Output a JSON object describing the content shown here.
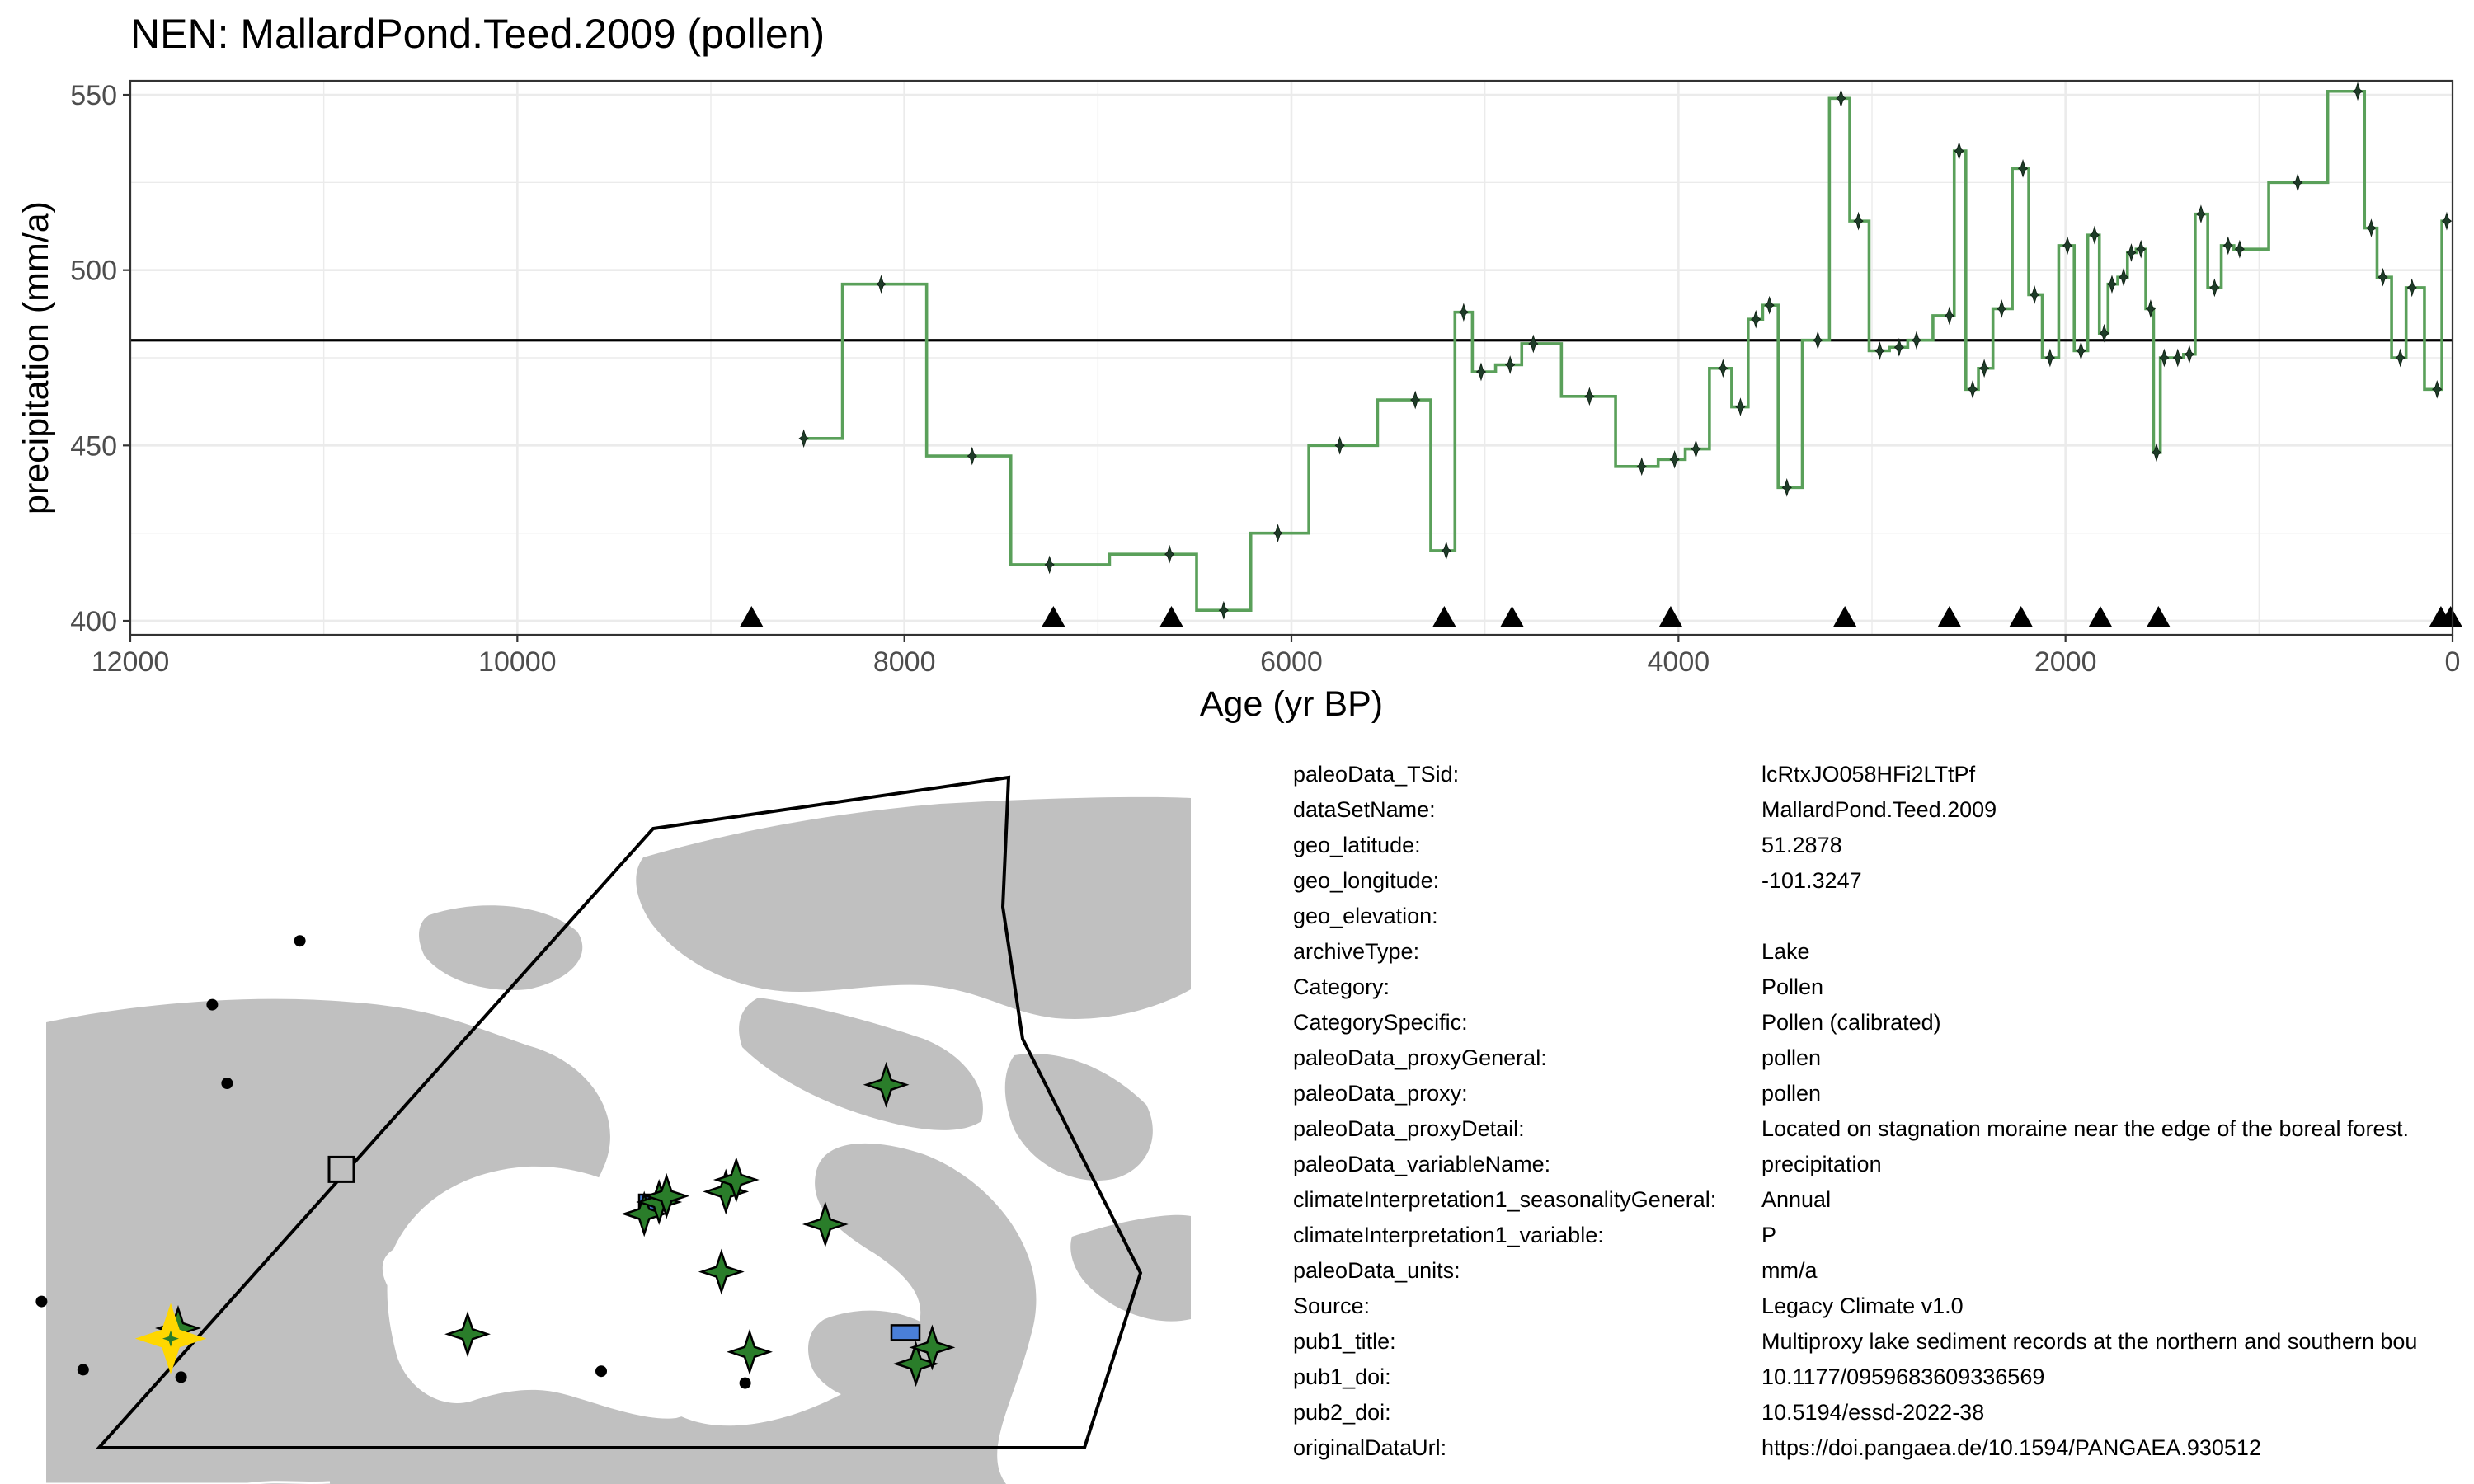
{
  "chart_data": {
    "type": "line",
    "title": "NEN: MallardPond.Teed.2009 (pollen)",
    "xlabel": "Age (yr BP)",
    "ylabel": "precipitation (mm/a)",
    "xlim": [
      12000,
      0
    ],
    "ylim": [
      396,
      554
    ],
    "x_reversed": true,
    "grid": true,
    "x_ticks": [
      "12000",
      "10000",
      "8000",
      "6000",
      "4000",
      "2000",
      "0"
    ],
    "y_ticks": [
      "400",
      "450",
      "500",
      "550"
    ],
    "line_style": "step",
    "series": [
      {
        "x": [
          8520,
          8120,
          7650,
          7250,
          6630,
          6350,
          6070,
          5750,
          5360,
          5200,
          5110,
          5020,
          4870,
          4750,
          4460,
          4190,
          4020,
          3910,
          3770,
          3680,
          3600,
          3530,
          3440,
          3280,
          3160,
          3070,
          2960,
          2860,
          2770,
          2600,
          2550,
          2480,
          2420,
          2330,
          2220,
          2160,
          2080,
          1990,
          1920,
          1850,
          1800,
          1760,
          1700,
          1660,
          1610,
          1560,
          1530,
          1490,
          1420,
          1360,
          1300,
          1230,
          1160,
          1100,
          800,
          490,
          420,
          360,
          270,
          210,
          80,
          30
        ],
        "y": [
          452,
          496,
          447,
          416,
          419,
          403,
          425,
          450,
          463,
          420,
          488,
          471,
          473,
          479,
          464,
          444,
          446,
          449,
          472,
          461,
          486,
          490,
          438,
          480,
          549,
          514,
          477,
          478,
          480,
          487,
          534,
          466,
          472,
          489,
          529,
          493,
          475,
          507,
          477,
          510,
          482,
          496,
          498,
          505,
          506,
          489,
          448,
          475,
          475,
          476,
          516,
          495,
          507,
          506,
          525,
          551,
          512,
          498,
          475,
          495,
          466,
          514
        ]
      }
    ],
    "reference_line": 480,
    "markers_at_base_x": [
      8790,
      7230,
      6620,
      5210,
      4860,
      4040,
      3140,
      2600,
      2230,
      1820,
      1520,
      60,
      10
    ]
  },
  "map": {
    "sites": {
      "target_star": [
        115,
        902
      ],
      "green_stars": [
        [
          597,
          731
        ],
        [
          434,
          818
        ],
        [
          444,
          810
        ],
        [
          449,
          806
        ],
        [
          489,
          803
        ],
        [
          496,
          795
        ],
        [
          556,
          825
        ],
        [
          486,
          857
        ],
        [
          315,
          899
        ],
        [
          505,
          911
        ],
        [
          617,
          919
        ],
        [
          628,
          908
        ],
        [
          120,
          895
        ]
      ],
      "black_dots": [
        [
          202,
          634
        ],
        [
          143,
          677
        ],
        [
          153,
          730
        ],
        [
          28,
          877
        ],
        [
          56,
          923
        ],
        [
          122,
          928
        ],
        [
          405,
          924
        ],
        [
          502,
          932
        ]
      ],
      "hollow_squares": [
        [
          230,
          788
        ]
      ],
      "blue_rects": [
        [
          440,
          810
        ],
        [
          610,
          898
        ]
      ]
    }
  },
  "metadata": [
    {
      "key": "paleoData_TSid:",
      "value": "lcRtxJO058HFi2LTtPf"
    },
    {
      "key": "dataSetName:",
      "value": "MallardPond.Teed.2009"
    },
    {
      "key": "geo_latitude:",
      "value": "51.2878"
    },
    {
      "key": "geo_longitude:",
      "value": "-101.3247"
    },
    {
      "key": "geo_elevation:",
      "value": ""
    },
    {
      "key": "archiveType:",
      "value": "Lake"
    },
    {
      "key": "Category:",
      "value": "Pollen"
    },
    {
      "key": "CategorySpecific:",
      "value": "Pollen (calibrated)"
    },
    {
      "key": "paleoData_proxyGeneral:",
      "value": "pollen"
    },
    {
      "key": "paleoData_proxy:",
      "value": "pollen"
    },
    {
      "key": "paleoData_proxyDetail:",
      "value": "Located on stagnation moraine near the edge of the boreal forest."
    },
    {
      "key": "paleoData_variableName:",
      "value": "precipitation"
    },
    {
      "key": "climateInterpretation1_seasonalityGeneral:",
      "value": "Annual"
    },
    {
      "key": "climateInterpretation1_variable:",
      "value": "P"
    },
    {
      "key": "paleoData_units:",
      "value": "mm/a"
    },
    {
      "key": "Source:",
      "value": "Legacy Climate v1.0"
    },
    {
      "key": "pub1_title:",
      "value": "Multiproxy lake sediment records at the northern and southern bou"
    },
    {
      "key": "pub1_doi:",
      "value": "10.1177/0959683609336569"
    },
    {
      "key": "pub2_doi:",
      "value": "10.5194/essd-2022-38"
    },
    {
      "key": "originalDataUrl:",
      "value": "https://doi.pangaea.de/10.1594/PANGAEA.930512"
    }
  ],
  "colors": {
    "series_line": "#5aa05a",
    "point": "#1e3c28",
    "grid": "#ebebeb",
    "land": "#c0c0c0",
    "site_star": "#2a7d2a",
    "target_star": "#ffd700",
    "site_rect": "#4a7fd8"
  }
}
